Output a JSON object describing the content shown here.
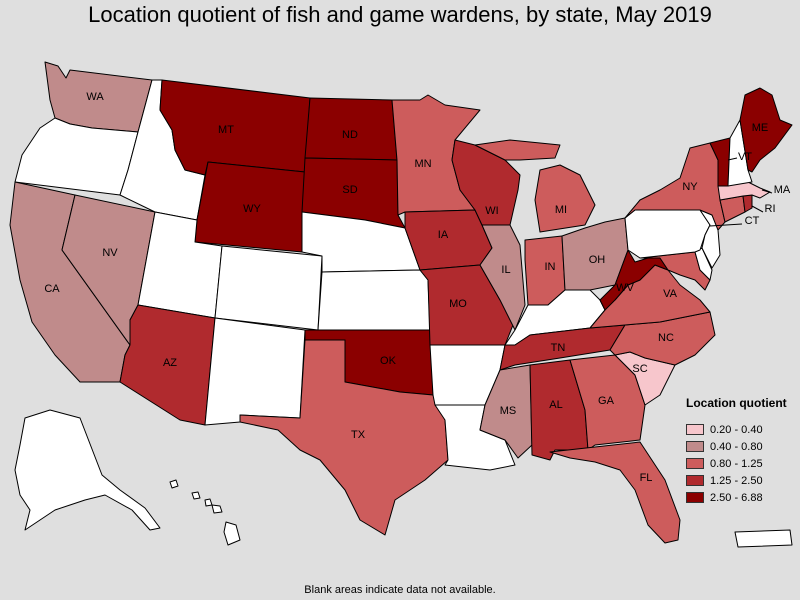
{
  "title": "Location quotient of fish and game wardens, by state, May 2019",
  "footnote": "Blank areas indicate data not available.",
  "legend": {
    "title": "Location quotient",
    "items": [
      {
        "label": "0.20 - 0.40",
        "color": "#f7c6cc"
      },
      {
        "label": "0.40 - 0.80",
        "color": "#c08b8b"
      },
      {
        "label": "0.80 - 1.25",
        "color": "#cd5c5c"
      },
      {
        "label": "1.25 - 2.50",
        "color": "#b02a2e"
      },
      {
        "label": "2.50 - 6.88",
        "color": "#8b0000"
      }
    ]
  },
  "colors": {
    "blank": "#ffffff",
    "background": "#dfdfdf"
  },
  "states": {
    "WA": {
      "label": "WA",
      "class": 1
    },
    "OR": {
      "label": "",
      "class": null
    },
    "CA": {
      "label": "CA",
      "class": 1
    },
    "NV": {
      "label": "NV",
      "class": 1
    },
    "ID": {
      "label": "",
      "class": null
    },
    "MT": {
      "label": "MT",
      "class": 4
    },
    "WY": {
      "label": "WY",
      "class": 4
    },
    "UT": {
      "label": "",
      "class": null
    },
    "AZ": {
      "label": "AZ",
      "class": 3
    },
    "CO": {
      "label": "",
      "class": null
    },
    "NM": {
      "label": "",
      "class": null
    },
    "ND": {
      "label": "ND",
      "class": 4
    },
    "SD": {
      "label": "SD",
      "class": 4
    },
    "NE": {
      "label": "",
      "class": null
    },
    "KS": {
      "label": "",
      "class": null
    },
    "OK": {
      "label": "OK",
      "class": 4
    },
    "TX": {
      "label": "TX",
      "class": 2
    },
    "MN": {
      "label": "MN",
      "class": 2
    },
    "IA": {
      "label": "IA",
      "class": 3
    },
    "MO": {
      "label": "MO",
      "class": 3
    },
    "AR": {
      "label": "",
      "class": null
    },
    "LA": {
      "label": "",
      "class": null
    },
    "WI": {
      "label": "WI",
      "class": 3
    },
    "IL": {
      "label": "IL",
      "class": 1
    },
    "MI": {
      "label": "MI",
      "class": 2
    },
    "IN": {
      "label": "IN",
      "class": 2
    },
    "OH": {
      "label": "OH",
      "class": 1
    },
    "KY": {
      "label": "",
      "class": null
    },
    "TN": {
      "label": "TN",
      "class": 3
    },
    "MS": {
      "label": "MS",
      "class": 1
    },
    "AL": {
      "label": "AL",
      "class": 3
    },
    "GA": {
      "label": "GA",
      "class": 2
    },
    "FL": {
      "label": "FL",
      "class": 2
    },
    "SC": {
      "label": "SC",
      "class": 0
    },
    "NC": {
      "label": "NC",
      "class": 2
    },
    "VA": {
      "label": "VA",
      "class": 2
    },
    "WV": {
      "label": "WV",
      "class": 4
    },
    "MD": {
      "label": "",
      "class": 2
    },
    "DE": {
      "label": "",
      "class": null
    },
    "NJ": {
      "label": "",
      "class": null
    },
    "PA": {
      "label": "",
      "class": null
    },
    "NY": {
      "label": "NY",
      "class": 2
    },
    "CT": {
      "label": "CT",
      "class": 2
    },
    "RI": {
      "label": "RI",
      "class": 3
    },
    "MA": {
      "label": "MA",
      "class": 0
    },
    "VT": {
      "label": "VT",
      "class": 4
    },
    "NH": {
      "label": "",
      "class": null
    },
    "ME": {
      "label": "ME",
      "class": 4
    },
    "AK": {
      "label": "",
      "class": null
    },
    "HI": {
      "label": "",
      "class": null
    },
    "PR": {
      "label": "",
      "class": null
    }
  }
}
